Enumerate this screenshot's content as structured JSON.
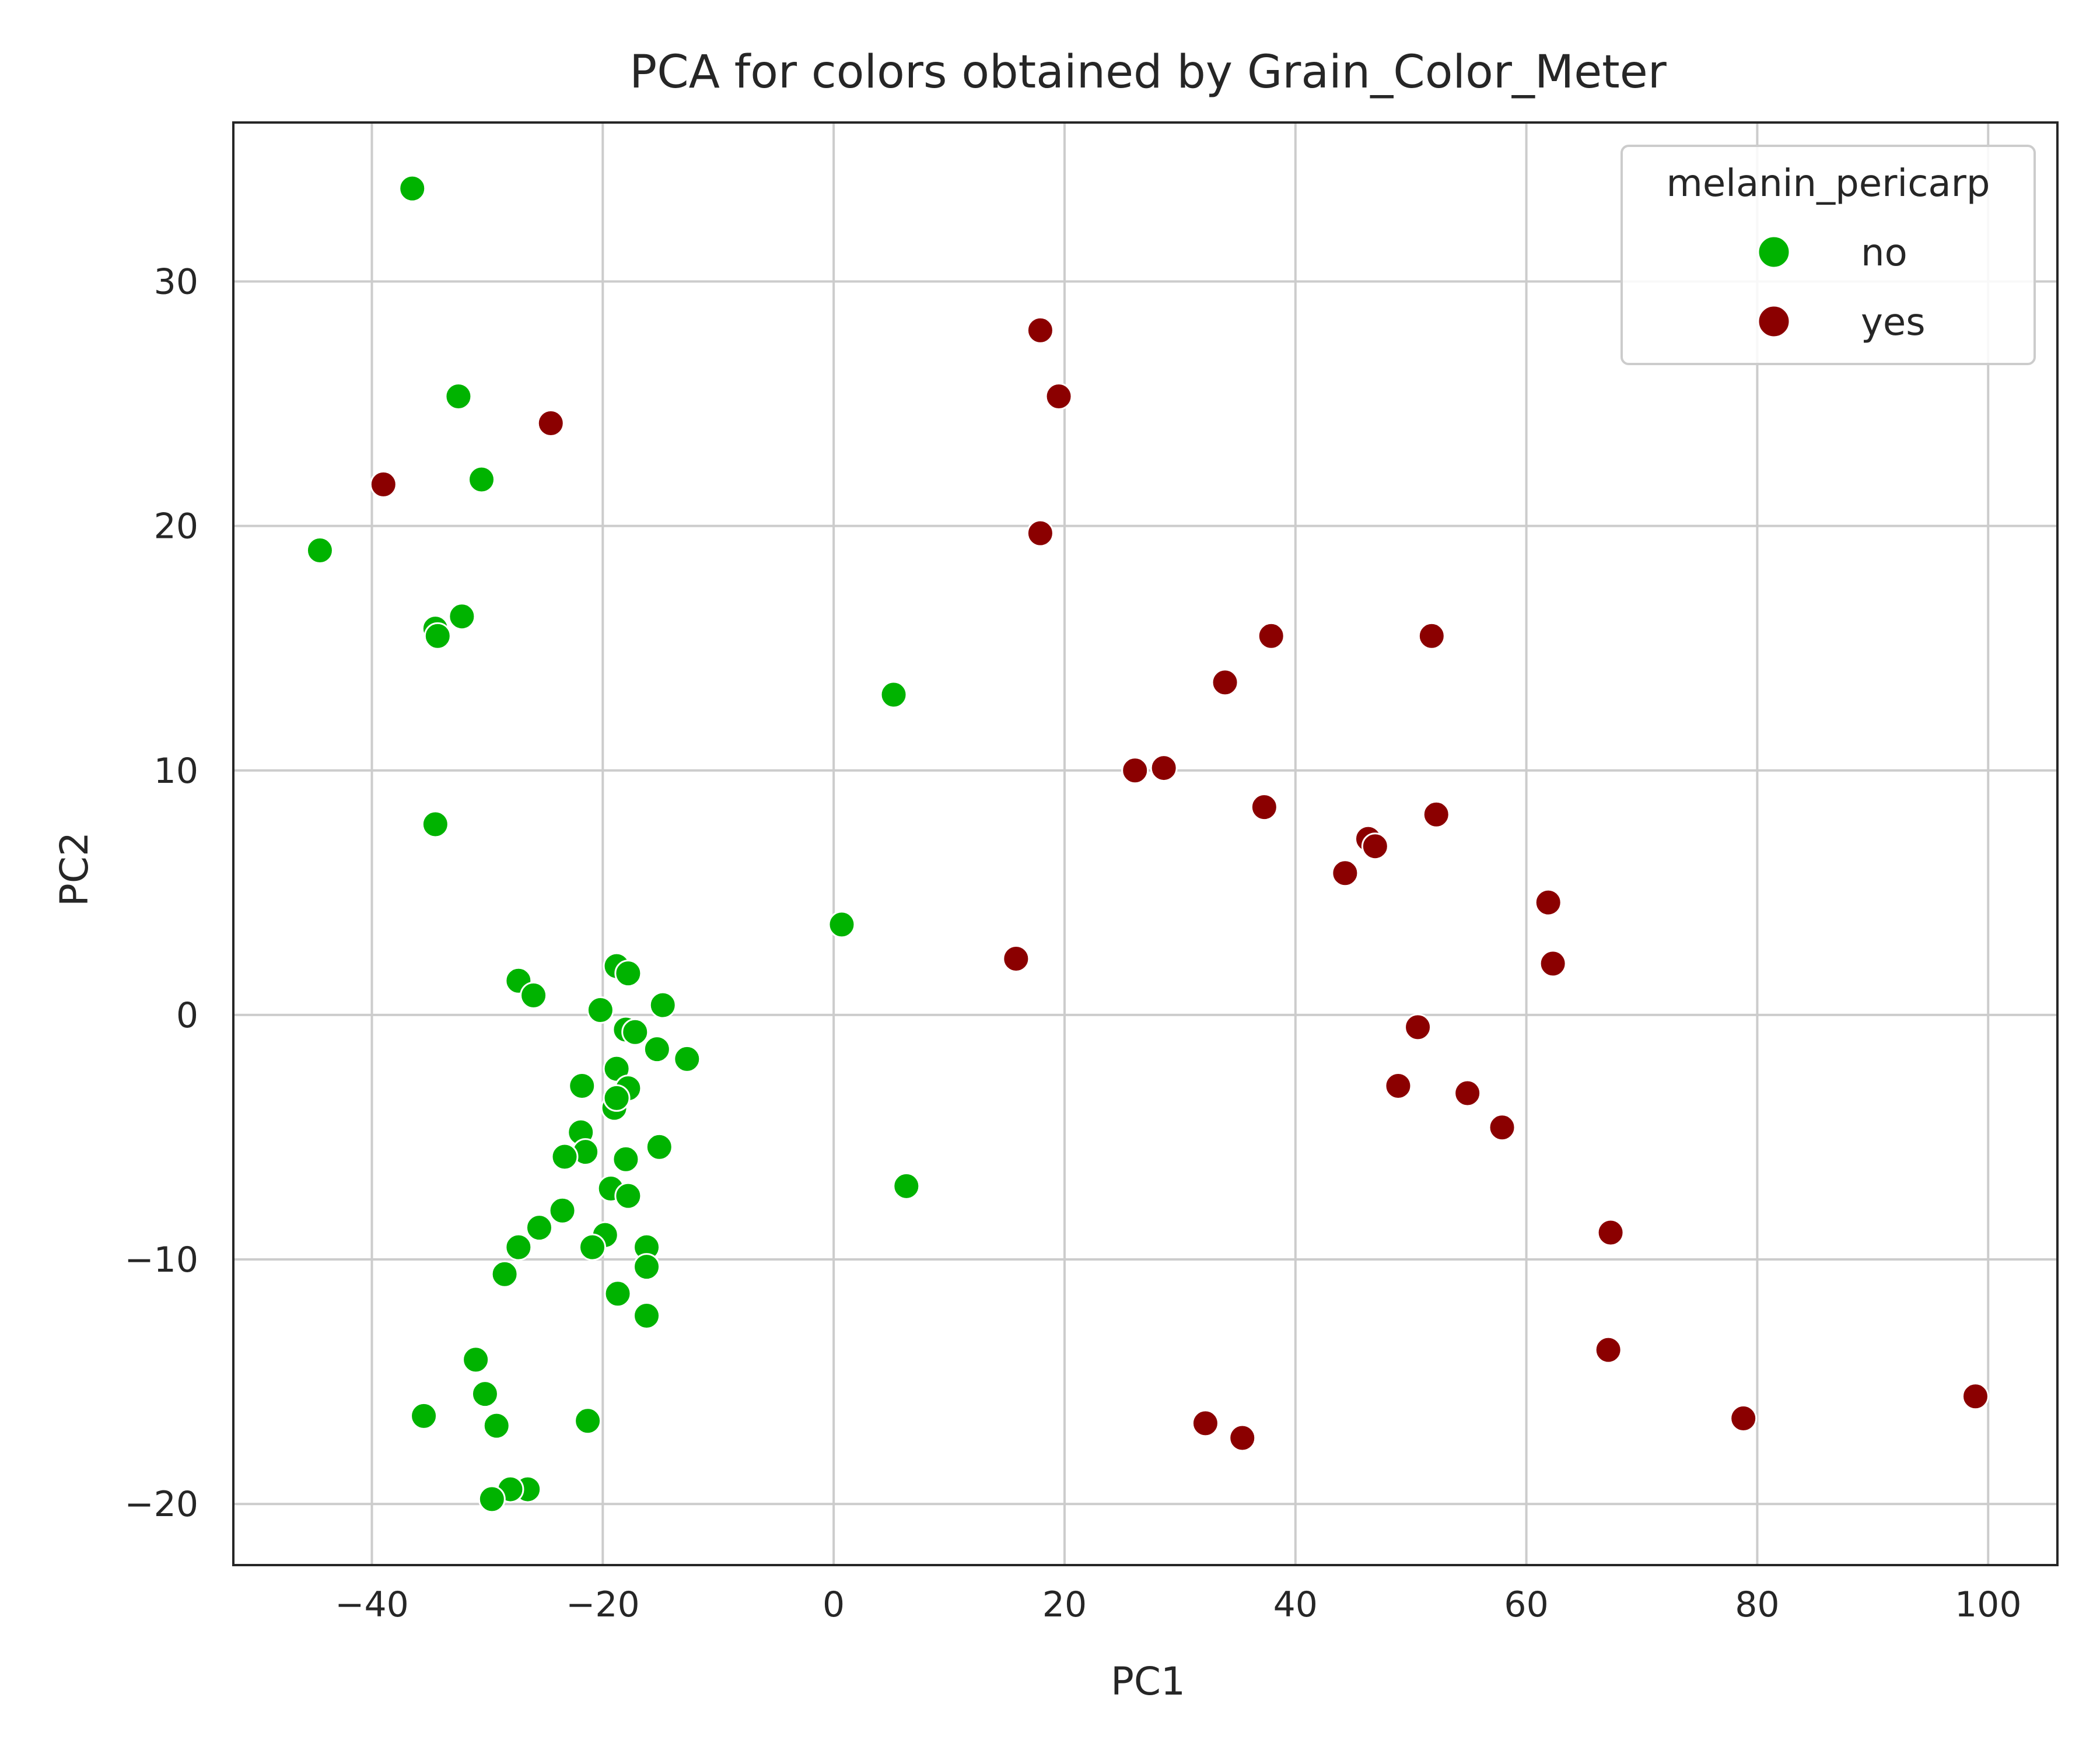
{
  "chart_data": {
    "type": "scatter",
    "title": "PCA for colors obtained by Grain_Color_Meter",
    "xlabel": "PC1",
    "ylabel": "PC2",
    "xlim": [
      -52,
      106
    ],
    "ylim": [
      -22.5,
      36.5
    ],
    "xticks": [
      -40,
      -20,
      0,
      20,
      40,
      60,
      80,
      100
    ],
    "yticks": [
      -20,
      -10,
      0,
      10,
      20,
      30
    ],
    "grid": true,
    "legend": {
      "title": "melanin_pericarp",
      "placement": "top-right"
    },
    "series": [
      {
        "name": "no",
        "color": "#00b300",
        "points": [
          [
            -36.5,
            33.8
          ],
          [
            -32.5,
            25.3
          ],
          [
            -30.5,
            21.9
          ],
          [
            -44.5,
            19.0
          ],
          [
            -34.5,
            15.8
          ],
          [
            -34.3,
            15.5
          ],
          [
            -32.2,
            16.3
          ],
          [
            -34.5,
            7.8
          ],
          [
            5.2,
            13.1
          ],
          [
            0.7,
            3.7
          ],
          [
            6.3,
            -7.0
          ],
          [
            -27.3,
            1.4
          ],
          [
            -26.0,
            0.8
          ],
          [
            -18.8,
            2.0
          ],
          [
            -17.8,
            1.7
          ],
          [
            -20.2,
            0.2
          ],
          [
            -14.8,
            0.4
          ],
          [
            -18.0,
            -0.6
          ],
          [
            -17.2,
            -0.7
          ],
          [
            -15.3,
            -1.4
          ],
          [
            -12.7,
            -1.8
          ],
          [
            -18.8,
            -2.2
          ],
          [
            -21.8,
            -2.9
          ],
          [
            -17.8,
            -3.0
          ],
          [
            -19.0,
            -3.8
          ],
          [
            -18.8,
            -3.4
          ],
          [
            -21.9,
            -4.8
          ],
          [
            -21.5,
            -5.6
          ],
          [
            -23.3,
            -5.8
          ],
          [
            -15.1,
            -5.4
          ],
          [
            -18.0,
            -5.9
          ],
          [
            -19.3,
            -7.1
          ],
          [
            -17.8,
            -7.4
          ],
          [
            -23.5,
            -8.0
          ],
          [
            -25.5,
            -8.7
          ],
          [
            -19.8,
            -9.0
          ],
          [
            -20.9,
            -9.5
          ],
          [
            -27.3,
            -9.5
          ],
          [
            -16.2,
            -9.5
          ],
          [
            -16.2,
            -10.3
          ],
          [
            -28.5,
            -10.6
          ],
          [
            -18.7,
            -11.4
          ],
          [
            -16.2,
            -12.3
          ],
          [
            -31.0,
            -14.1
          ],
          [
            -30.2,
            -15.5
          ],
          [
            -35.5,
            -16.4
          ],
          [
            -29.2,
            -16.8
          ],
          [
            -21.3,
            -16.6
          ],
          [
            -26.5,
            -19.4
          ],
          [
            -28.0,
            -19.4
          ],
          [
            -29.6,
            -19.8
          ]
        ]
      },
      {
        "name": "yes",
        "color": "#8b0000",
        "points": [
          [
            17.9,
            28.0
          ],
          [
            19.5,
            25.3
          ],
          [
            -24.5,
            24.2
          ],
          [
            -39.0,
            21.7
          ],
          [
            17.9,
            19.7
          ],
          [
            37.9,
            15.5
          ],
          [
            51.8,
            15.5
          ],
          [
            33.9,
            13.6
          ],
          [
            26.1,
            10.0
          ],
          [
            28.6,
            10.1
          ],
          [
            37.3,
            8.5
          ],
          [
            52.2,
            8.2
          ],
          [
            46.3,
            7.2
          ],
          [
            46.9,
            6.9
          ],
          [
            44.3,
            5.8
          ],
          [
            61.9,
            4.6
          ],
          [
            62.3,
            2.1
          ],
          [
            15.8,
            2.3
          ],
          [
            50.6,
            -0.5
          ],
          [
            48.9,
            -2.9
          ],
          [
            54.9,
            -3.2
          ],
          [
            57.9,
            -4.6
          ],
          [
            67.3,
            -8.9
          ],
          [
            67.1,
            -13.7
          ],
          [
            78.8,
            -16.5
          ],
          [
            98.9,
            -15.6
          ],
          [
            32.2,
            -16.7
          ],
          [
            35.4,
            -17.3
          ]
        ]
      }
    ]
  }
}
